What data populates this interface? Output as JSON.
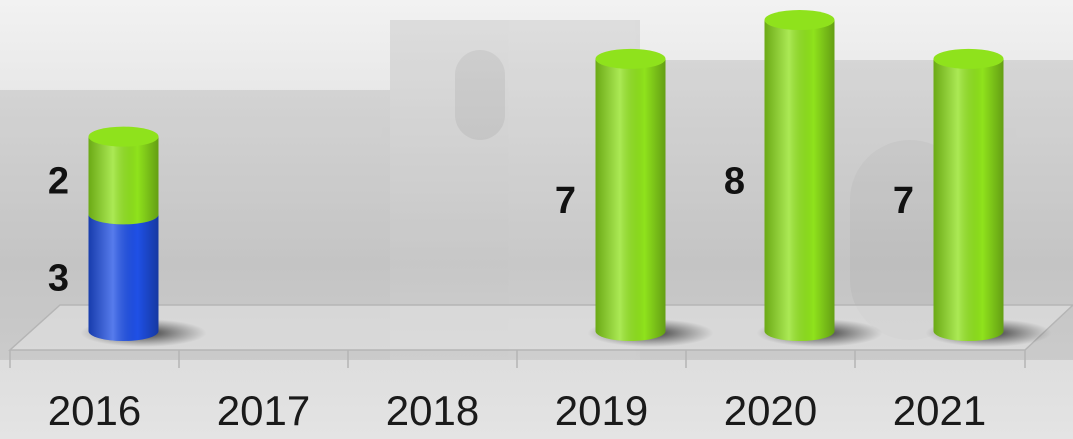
{
  "chart_data": {
    "type": "bar",
    "stacked": true,
    "categories": [
      "2016",
      "2017",
      "2018",
      "2019",
      "2020",
      "2021"
    ],
    "series": [
      {
        "color": "#1f50e6",
        "values": [
          3,
          null,
          null,
          null,
          null,
          null
        ]
      },
      {
        "color": "#8fe21c",
        "values": [
          2,
          null,
          null,
          7,
          8,
          7
        ]
      }
    ]
  }
}
